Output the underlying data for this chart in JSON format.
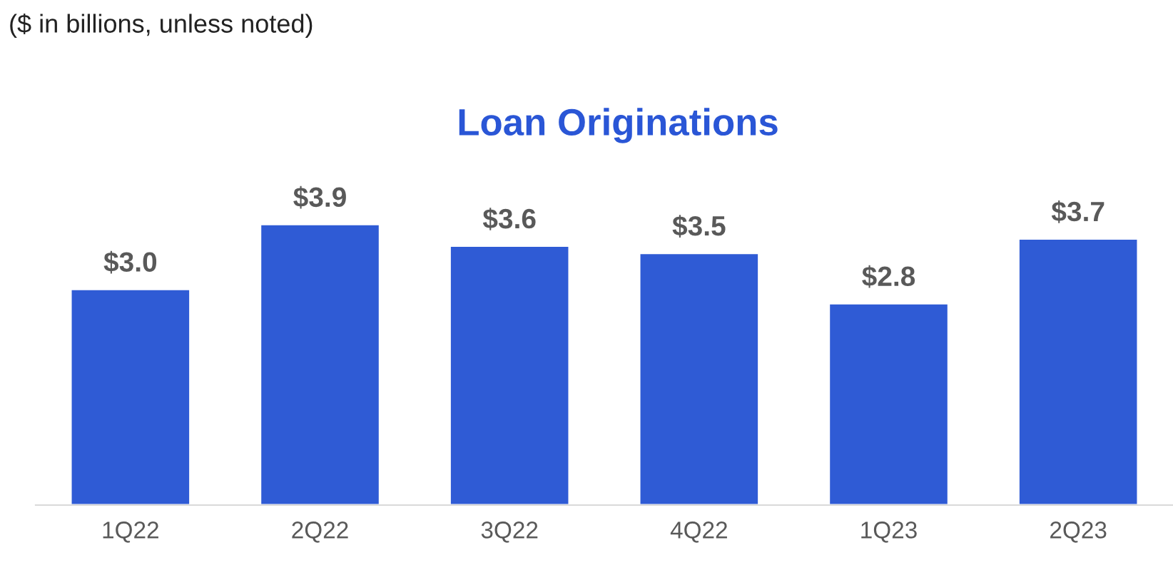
{
  "chart_data": {
    "type": "bar",
    "title": "Loan Originations",
    "annotations": [
      "($ in billions, unless noted)"
    ],
    "categories": [
      "1Q22",
      "2Q22",
      "3Q22",
      "4Q22",
      "1Q23",
      "2Q23"
    ],
    "values": [
      3.0,
      3.9,
      3.6,
      3.5,
      2.8,
      3.7
    ],
    "value_labels": [
      "$3.0",
      "$3.9",
      "$3.6",
      "$3.5",
      "$2.8",
      "$3.7"
    ],
    "color": "#2f5bd5",
    "grid": false,
    "legend": false
  }
}
